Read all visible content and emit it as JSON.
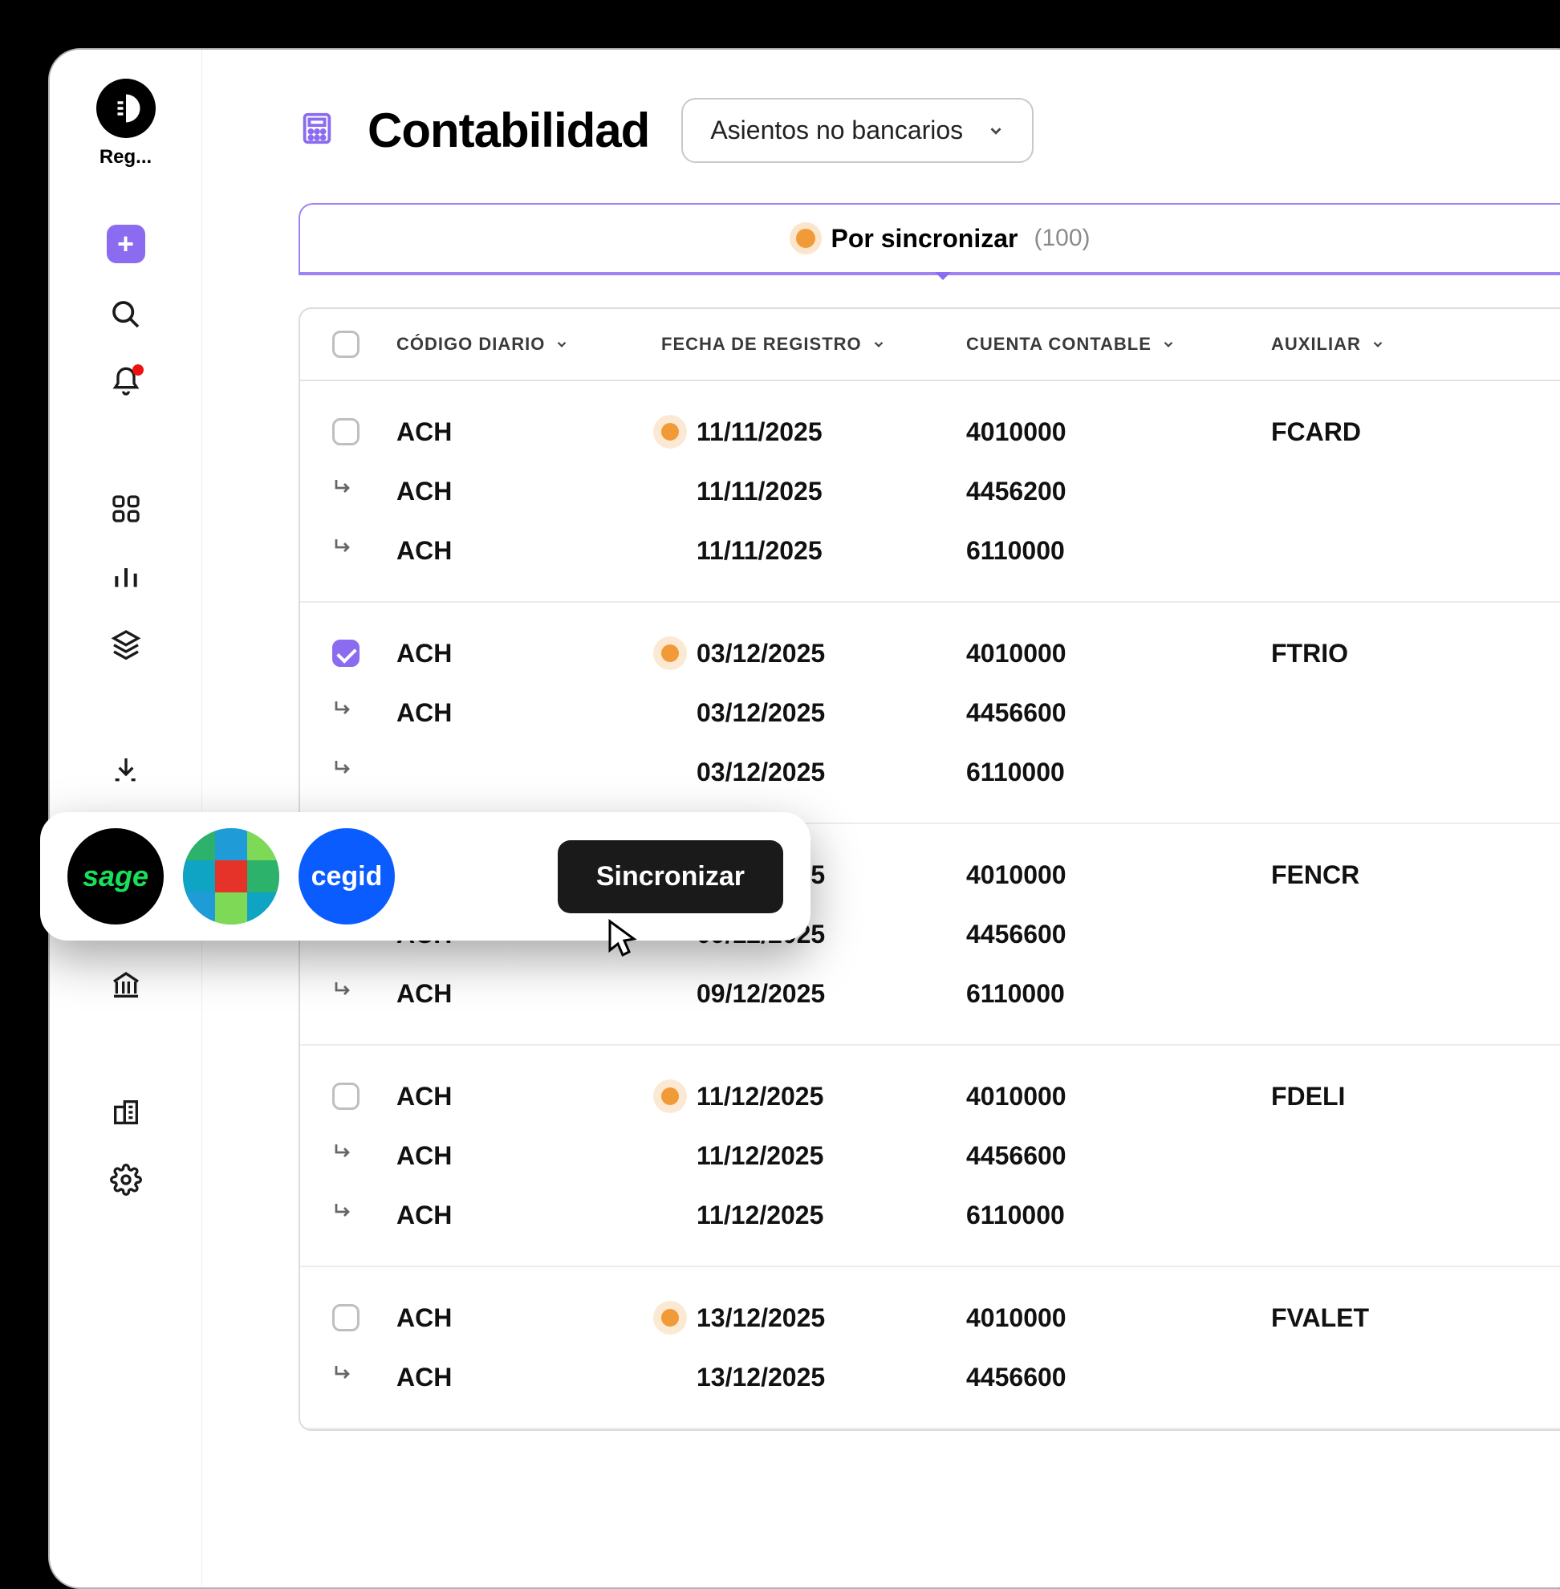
{
  "sidebar": {
    "logo_label": "Reg...",
    "icons": [
      "add",
      "search",
      "bell",
      "apps",
      "analytics",
      "layers",
      "download",
      "bank",
      "building",
      "settings"
    ]
  },
  "header": {
    "title": "Contabilidad",
    "dropdown_value": "Asientos no bancarios"
  },
  "status": {
    "label": "Por sincronizar",
    "count": "(100)",
    "dot_color": "#f19a38"
  },
  "columns": {
    "codigo": "CÓDIGO DIARIO",
    "fecha": "FECHA DE REGISTRO",
    "cuenta": "CUENTA CONTABLE",
    "auxiliar": "AUXILIAR"
  },
  "groups": [
    {
      "selected": false,
      "rows": [
        {
          "codigo": "ACH",
          "fecha": "11/11/2025",
          "cuenta": "4010000",
          "auxiliar": "FCARD",
          "has_dot": true,
          "sub": false
        },
        {
          "codigo": "ACH",
          "fecha": "11/11/2025",
          "cuenta": "4456200",
          "auxiliar": "",
          "has_dot": false,
          "sub": true
        },
        {
          "codigo": "ACH",
          "fecha": "11/11/2025",
          "cuenta": "6110000",
          "auxiliar": "",
          "has_dot": false,
          "sub": true
        }
      ]
    },
    {
      "selected": true,
      "rows": [
        {
          "codigo": "ACH",
          "fecha": "03/12/2025",
          "cuenta": "4010000",
          "auxiliar": "FTRIO",
          "has_dot": true,
          "sub": false
        },
        {
          "codigo": "ACH",
          "fecha": "03/12/2025",
          "cuenta": "4456600",
          "auxiliar": "",
          "has_dot": false,
          "sub": true
        },
        {
          "codigo": "",
          "fecha": "03/12/2025",
          "cuenta": "6110000",
          "auxiliar": "",
          "has_dot": false,
          "sub": true
        }
      ]
    },
    {
      "selected": false,
      "rows": [
        {
          "codigo": "",
          "fecha": "09/12/2025",
          "cuenta": "4010000",
          "auxiliar": "FENCR",
          "has_dot": false,
          "sub": false
        },
        {
          "codigo": "ACH",
          "fecha": "09/12/2025",
          "cuenta": "4456600",
          "auxiliar": "",
          "has_dot": false,
          "sub": true
        },
        {
          "codigo": "ACH",
          "fecha": "09/12/2025",
          "cuenta": "6110000",
          "auxiliar": "",
          "has_dot": false,
          "sub": true
        }
      ]
    },
    {
      "selected": false,
      "rows": [
        {
          "codigo": "ACH",
          "fecha": "11/12/2025",
          "cuenta": "4010000",
          "auxiliar": "FDELI",
          "has_dot": true,
          "sub": false
        },
        {
          "codigo": "ACH",
          "fecha": "11/12/2025",
          "cuenta": "4456600",
          "auxiliar": "",
          "has_dot": false,
          "sub": true
        },
        {
          "codigo": "ACH",
          "fecha": "11/12/2025",
          "cuenta": "6110000",
          "auxiliar": "",
          "has_dot": false,
          "sub": true
        }
      ]
    },
    {
      "selected": false,
      "rows": [
        {
          "codigo": "ACH",
          "fecha": "13/12/2025",
          "cuenta": "4010000",
          "auxiliar": "FVALET",
          "has_dot": true,
          "sub": false
        },
        {
          "codigo": "ACH",
          "fecha": "13/12/2025",
          "cuenta": "4456600",
          "auxiliar": "",
          "has_dot": false,
          "sub": true
        }
      ]
    }
  ],
  "integrations": {
    "sage_label": "sage",
    "cegid_label": "cegid",
    "sync_button": "Sincronizar"
  },
  "colors": {
    "accent": "#8b6cf0",
    "pending_dot": "#f19a38",
    "sage_bg": "#000000",
    "sage_text": "#18e05a",
    "cegid_bg": "#0a5cff"
  }
}
